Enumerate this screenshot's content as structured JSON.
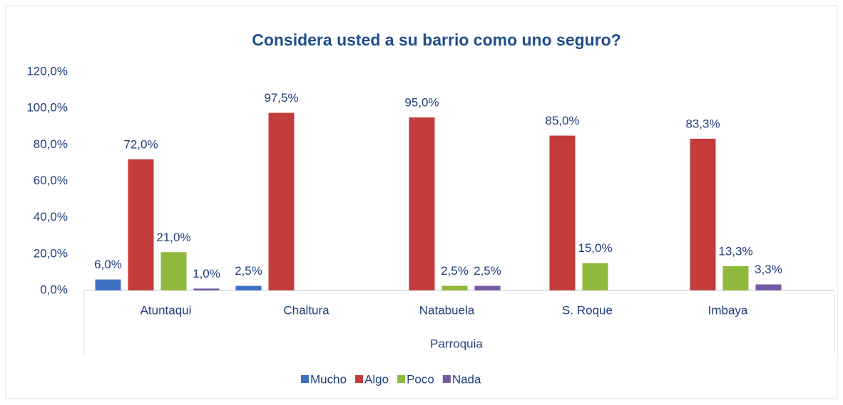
{
  "chart_data": {
    "type": "bar",
    "title": "Considera usted a su barrio como uno seguro?",
    "x_label": "Parroquia",
    "categories": [
      "Atuntaqui",
      "Chaltura",
      "Natabuela",
      "S. Roque",
      "Imbaya"
    ],
    "series": [
      {
        "name": "Mucho",
        "color": "#3d6fc2",
        "values": [
          6.0,
          2.5,
          null,
          null,
          null
        ],
        "value_labels": [
          "6,0%",
          "2,5%",
          null,
          null,
          null
        ]
      },
      {
        "name": "Algo",
        "color": "#c43b3b",
        "values": [
          72.0,
          97.5,
          95.0,
          85.0,
          83.3
        ],
        "value_labels": [
          "72,0%",
          "97,5%",
          "95,0%",
          "85,0%",
          "83,3%"
        ]
      },
      {
        "name": "Poco",
        "color": "#8fb93c",
        "values": [
          21.0,
          null,
          2.5,
          15.0,
          13.3
        ],
        "value_labels": [
          "21,0%",
          null,
          "2,5%",
          "15,0%",
          "13,3%"
        ]
      },
      {
        "name": "Nada",
        "color": "#7459a3",
        "values": [
          1.0,
          null,
          2.5,
          null,
          3.3
        ],
        "value_labels": [
          "1,0%",
          null,
          "2,5%",
          null,
          "3,3%"
        ]
      }
    ],
    "ylim": [
      0,
      120
    ],
    "yticks": [
      {
        "value": 0,
        "label": "0,0%"
      },
      {
        "value": 20,
        "label": "20,0%"
      },
      {
        "value": 40,
        "label": "40,0%"
      },
      {
        "value": 60,
        "label": "60,0%"
      },
      {
        "value": 80,
        "label": "80,0%"
      },
      {
        "value": 100,
        "label": "100,0%"
      },
      {
        "value": 120,
        "label": "120,0%"
      }
    ],
    "legend": "bottom"
  }
}
